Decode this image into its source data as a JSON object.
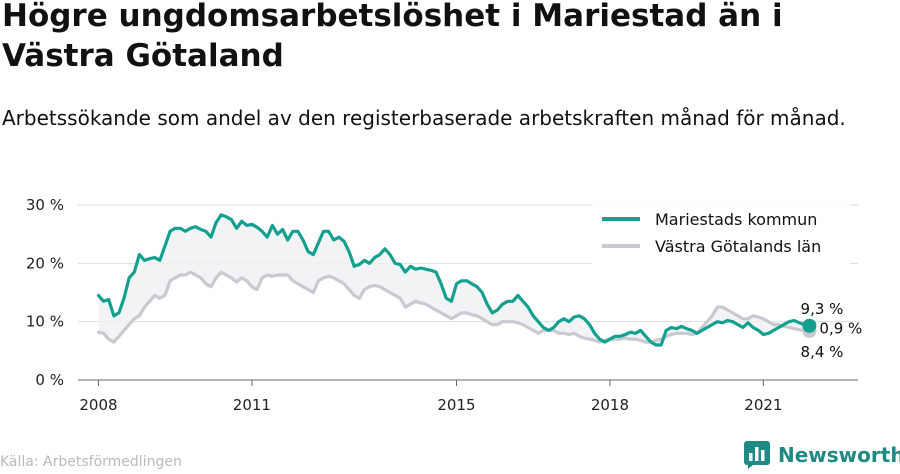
{
  "header": {
    "title": "Högre ungdomsarbetslöshet i Mariestad än i Västra Götaland",
    "subtitle": "Arbetssökande som andel av den registerbaserade arbetskraften månad för månad."
  },
  "footer": {
    "source": "Källa: Arbetsförmedlingen",
    "brand": "Newsworthy",
    "brand_icon": "newsworthy-logo-icon",
    "brand_color": "#1e8a83"
  },
  "chart_data": {
    "type": "line",
    "title": "Högre ungdomsarbetslöshet i Mariestad än i Västra Götaland",
    "subtitle": "Arbetssökande som andel av den registerbaserade arbetskraften månad för månad.",
    "xlabel": "",
    "ylabel": "",
    "ylim": [
      0,
      30
    ],
    "xlim": [
      2007.6,
      2022.85
    ],
    "y_ticks": [
      0,
      10,
      20,
      30
    ],
    "y_tick_labels": [
      "0 %",
      "10 %",
      "20 %",
      "30 %"
    ],
    "x_ticks": [
      2008,
      2011,
      2015,
      2018,
      2021
    ],
    "x_tick_labels": [
      "2008",
      "2011",
      "2015",
      "2018",
      "2021"
    ],
    "grid": true,
    "legend_position": "top-right",
    "series": [
      {
        "name": "Mariestads kommun",
        "color": "#13a08f",
        "x": [
          2008.0,
          2008.1,
          2008.2,
          2008.3,
          2008.4,
          2008.5,
          2008.6,
          2008.7,
          2008.8,
          2008.9,
          2009.0,
          2009.1,
          2009.2,
          2009.3,
          2009.4,
          2009.5,
          2009.6,
          2009.7,
          2009.8,
          2009.9,
          2010.0,
          2010.1,
          2010.2,
          2010.3,
          2010.4,
          2010.5,
          2010.6,
          2010.7,
          2010.8,
          2010.9,
          2011.0,
          2011.1,
          2011.2,
          2011.3,
          2011.4,
          2011.5,
          2011.6,
          2011.7,
          2011.8,
          2011.9,
          2012.0,
          2012.1,
          2012.2,
          2012.3,
          2012.4,
          2012.5,
          2012.6,
          2012.7,
          2012.8,
          2012.9,
          2013.0,
          2013.1,
          2013.2,
          2013.3,
          2013.4,
          2013.5,
          2013.6,
          2013.7,
          2013.8,
          2013.9,
          2014.0,
          2014.1,
          2014.2,
          2014.3,
          2014.4,
          2014.5,
          2014.6,
          2014.7,
          2014.8,
          2014.9,
          2015.0,
          2015.1,
          2015.2,
          2015.3,
          2015.4,
          2015.5,
          2015.6,
          2015.7,
          2015.8,
          2015.9,
          2016.0,
          2016.1,
          2016.2,
          2016.3,
          2016.4,
          2016.5,
          2016.6,
          2016.7,
          2016.8,
          2016.9,
          2017.0,
          2017.1,
          2017.2,
          2017.3,
          2017.4,
          2017.5,
          2017.6,
          2017.7,
          2017.8,
          2017.9,
          2018.0,
          2018.1,
          2018.2,
          2018.3,
          2018.4,
          2018.5,
          2018.6,
          2018.7,
          2018.8,
          2018.9,
          2019.0,
          2019.1,
          2019.2,
          2019.3,
          2019.4,
          2019.5,
          2019.6,
          2019.7,
          2019.8,
          2019.9,
          2020.0,
          2020.1,
          2020.2,
          2020.3,
          2020.4,
          2020.5,
          2020.6,
          2020.7,
          2020.8,
          2020.9,
          2021.0,
          2021.1,
          2021.2,
          2021.3,
          2021.4,
          2021.5,
          2021.6,
          2021.7,
          2021.8,
          2021.9
        ],
        "values": [
          14.5,
          13.5,
          13.8,
          11.0,
          11.5,
          14.0,
          17.5,
          18.5,
          21.5,
          20.5,
          20.8,
          21.0,
          20.5,
          23.0,
          25.5,
          26.0,
          26.0,
          25.5,
          26.0,
          26.3,
          25.8,
          25.5,
          24.5,
          27.0,
          28.3,
          28.0,
          27.5,
          26.0,
          27.2,
          26.5,
          26.7,
          26.2,
          25.5,
          24.5,
          26.5,
          25.0,
          25.8,
          24.0,
          25.5,
          25.5,
          24.0,
          22.0,
          21.5,
          23.5,
          25.5,
          25.5,
          24.0,
          24.5,
          23.8,
          22.0,
          19.5,
          19.8,
          20.5,
          20.0,
          21.0,
          21.5,
          22.5,
          21.5,
          20.0,
          19.8,
          18.5,
          19.5,
          19.0,
          19.2,
          19.0,
          18.8,
          18.5,
          16.5,
          14.0,
          13.5,
          16.5,
          17.0,
          17.0,
          16.5,
          16.0,
          15.0,
          13.0,
          11.5,
          12.0,
          13.0,
          13.5,
          13.5,
          14.5,
          13.5,
          12.5,
          11.0,
          10.0,
          9.0,
          8.5,
          9.0,
          10.0,
          10.5,
          10.0,
          10.8,
          11.0,
          10.5,
          9.5,
          8.0,
          7.0,
          6.5,
          7.0,
          7.5,
          7.5,
          7.8,
          8.2,
          8.0,
          8.5,
          7.5,
          6.5,
          6.0,
          6.0,
          8.5,
          9.0,
          8.8,
          9.2,
          8.8,
          8.5,
          8.0,
          8.5,
          9.0,
          9.5,
          10.0,
          9.8,
          10.2,
          10.0,
          9.5,
          9.0,
          9.8,
          9.0,
          8.5,
          7.8,
          8.0,
          8.5,
          9.0,
          9.5,
          10.0,
          10.2,
          9.8,
          9.5,
          9.3
        ]
      },
      {
        "name": "Västra Götalands län",
        "color": "#c9c9d2",
        "x": [
          2008.0,
          2008.1,
          2008.2,
          2008.3,
          2008.4,
          2008.5,
          2008.6,
          2008.7,
          2008.8,
          2008.9,
          2009.0,
          2009.1,
          2009.2,
          2009.3,
          2009.4,
          2009.5,
          2009.6,
          2009.7,
          2009.8,
          2009.9,
          2010.0,
          2010.1,
          2010.2,
          2010.3,
          2010.4,
          2010.5,
          2010.6,
          2010.7,
          2010.8,
          2010.9,
          2011.0,
          2011.1,
          2011.2,
          2011.3,
          2011.4,
          2011.5,
          2011.6,
          2011.7,
          2011.8,
          2011.9,
          2012.0,
          2012.1,
          2012.2,
          2012.3,
          2012.4,
          2012.5,
          2012.6,
          2012.7,
          2012.8,
          2012.9,
          2013.0,
          2013.1,
          2013.2,
          2013.3,
          2013.4,
          2013.5,
          2013.6,
          2013.7,
          2013.8,
          2013.9,
          2014.0,
          2014.1,
          2014.2,
          2014.3,
          2014.4,
          2014.5,
          2014.6,
          2014.7,
          2014.8,
          2014.9,
          2015.0,
          2015.1,
          2015.2,
          2015.3,
          2015.4,
          2015.5,
          2015.6,
          2015.7,
          2015.8,
          2015.9,
          2016.0,
          2016.1,
          2016.2,
          2016.3,
          2016.4,
          2016.5,
          2016.6,
          2016.7,
          2016.8,
          2016.9,
          2017.0,
          2017.1,
          2017.2,
          2017.3,
          2017.4,
          2017.5,
          2017.6,
          2017.7,
          2017.8,
          2017.9,
          2018.0,
          2018.1,
          2018.2,
          2018.3,
          2018.4,
          2018.5,
          2018.6,
          2018.7,
          2018.8,
          2018.9,
          2019.0,
          2019.1,
          2019.2,
          2019.3,
          2019.4,
          2019.5,
          2019.6,
          2019.7,
          2019.8,
          2019.9,
          2020.0,
          2020.1,
          2020.2,
          2020.3,
          2020.4,
          2020.5,
          2020.6,
          2020.7,
          2020.8,
          2020.9,
          2021.0,
          2021.1,
          2021.2,
          2021.3,
          2021.4,
          2021.5,
          2021.6,
          2021.7,
          2021.8,
          2021.9
        ],
        "values": [
          8.2,
          8.0,
          7.0,
          6.5,
          7.5,
          8.5,
          9.5,
          10.5,
          11.0,
          12.5,
          13.5,
          14.5,
          14.0,
          14.5,
          17.0,
          17.5,
          18.0,
          18.0,
          18.5,
          18.0,
          17.5,
          16.5,
          16.0,
          17.5,
          18.5,
          18.0,
          17.5,
          16.8,
          17.5,
          17.0,
          16.0,
          15.5,
          17.5,
          18.0,
          17.8,
          18.0,
          18.0,
          18.0,
          17.0,
          16.5,
          16.0,
          15.5,
          15.0,
          17.0,
          17.5,
          17.8,
          17.5,
          17.0,
          16.5,
          15.5,
          14.5,
          14.0,
          15.5,
          16.0,
          16.2,
          16.0,
          15.5,
          15.0,
          14.5,
          14.0,
          12.5,
          13.0,
          13.5,
          13.2,
          13.0,
          12.5,
          12.0,
          11.5,
          11.0,
          10.5,
          11.0,
          11.5,
          11.5,
          11.2,
          11.0,
          10.5,
          10.0,
          9.5,
          9.5,
          10.0,
          10.0,
          10.0,
          9.8,
          9.5,
          9.0,
          8.5,
          8.0,
          8.5,
          8.5,
          8.5,
          8.0,
          8.0,
          7.8,
          8.0,
          7.5,
          7.2,
          7.0,
          6.8,
          6.5,
          6.8,
          7.0,
          7.0,
          7.0,
          7.2,
          7.0,
          7.0,
          6.8,
          6.5,
          6.5,
          6.8,
          7.0,
          7.5,
          7.8,
          8.0,
          8.0,
          8.0,
          7.8,
          8.0,
          9.0,
          10.0,
          11.0,
          12.5,
          12.5,
          12.0,
          11.5,
          11.0,
          10.5,
          10.5,
          11.0,
          10.8,
          10.5,
          10.0,
          9.5,
          9.5,
          9.2,
          9.0,
          8.8,
          8.6,
          8.5,
          8.4
        ]
      }
    ],
    "annotations": [
      {
        "text": "9,3 %",
        "series": "Mariestads kommun"
      },
      {
        "text": "0,9 %",
        "type": "difference"
      },
      {
        "text": "8,4 %",
        "series": "Västra Götalands län"
      }
    ]
  }
}
